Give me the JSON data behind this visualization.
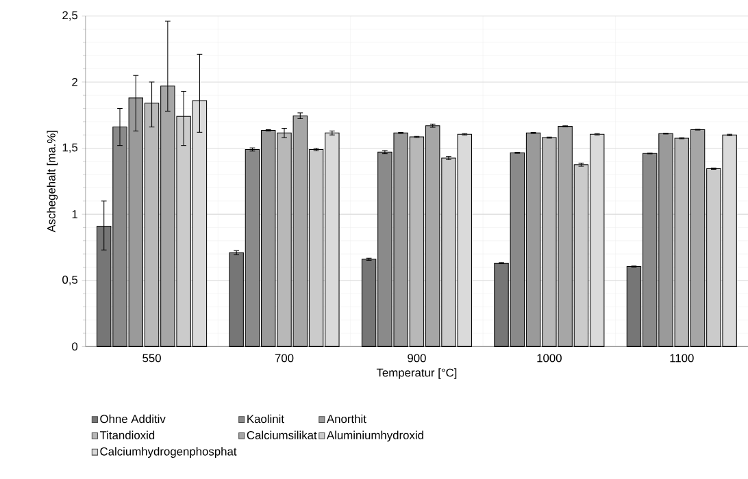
{
  "chart_data": {
    "type": "bar",
    "xlabel": "Temperatur [°C]",
    "ylabel": "Aschegehalt [ma.%]",
    "categories": [
      "550",
      "700",
      "900",
      "1000",
      "1100"
    ],
    "ylim": [
      0,
      2.5
    ],
    "yticks": [
      0,
      {
        "value": 0.5,
        "label": "0,5"
      },
      1,
      {
        "value": 1.5,
        "label": "1,5"
      },
      2,
      {
        "value": 2.5,
        "label": "2,5"
      }
    ],
    "grid": true,
    "legend": "bottom",
    "series": [
      {
        "name": "Ohne Additiv",
        "color": "#767676",
        "values": [
          0.91,
          0.71,
          0.66,
          0.63,
          0.605
        ],
        "errors": [
          [
            0.73,
            1.1
          ],
          0.015,
          0.008,
          0.004,
          0.004
        ]
      },
      {
        "name": "Kaolinit",
        "color": "#8a8a8a",
        "values": [
          1.66,
          1.49,
          1.47,
          1.465,
          1.46
        ],
        "errors": [
          [
            1.52,
            1.8
          ],
          0.012,
          0.012,
          0.004,
          0.003
        ]
      },
      {
        "name": "Anorthit",
        "color": "#9a9a9a",
        "values": [
          1.88,
          1.635,
          1.615,
          1.615,
          1.61
        ],
        "errors": [
          [
            1.63,
            2.05
          ],
          0.005,
          0.004,
          0.004,
          0.003
        ]
      },
      {
        "name": "Titandioxid",
        "color": "#b8b8b8",
        "values": [
          1.84,
          1.615,
          1.585,
          1.58,
          1.575
        ],
        "errors": [
          [
            1.66,
            2.0
          ],
          0.035,
          0.004,
          0.004,
          0.004
        ]
      },
      {
        "name": "Calciumsilikat",
        "color": "#a6a6a6",
        "values": [
          1.97,
          1.745,
          1.67,
          1.665,
          1.64
        ],
        "errors": [
          [
            1.78,
            2.46
          ],
          0.022,
          0.012,
          0.004,
          0.003
        ]
      },
      {
        "name": "Aluminiumhydroxid",
        "color": "#cbcbcb",
        "values": [
          1.74,
          1.49,
          1.425,
          1.375,
          1.345
        ],
        "errors": [
          [
            1.52,
            1.93
          ],
          0.01,
          0.012,
          0.012,
          0.005
        ]
      },
      {
        "name": "Calciumhydrogenphosphat",
        "color": "#dadada",
        "values": [
          1.86,
          1.615,
          1.605,
          1.605,
          1.6
        ],
        "errors": [
          [
            1.62,
            2.21
          ],
          0.015,
          0.005,
          0.005,
          0.005
        ]
      }
    ]
  }
}
